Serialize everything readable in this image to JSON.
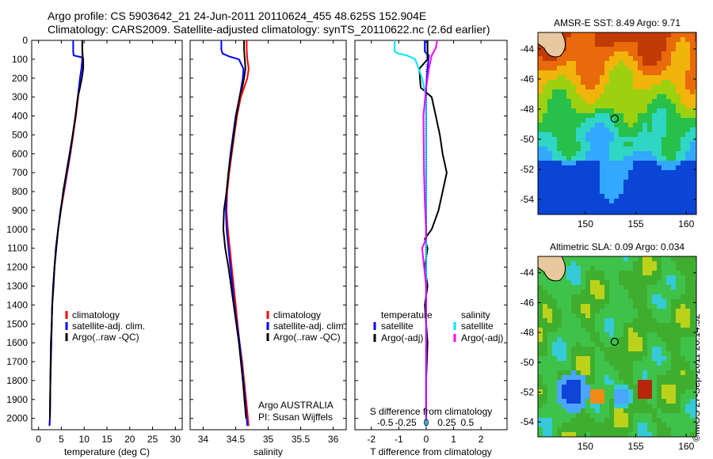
{
  "figure": {
    "title_line1": "Argo profile: CS 5903642_21 24-Jun-2011 20110624_455 48.625S 152.904E",
    "title_line2": "Climatology: CARS2009. Satellite-adjusted climatology: synTS_20110622.nc (2.6d earlier)",
    "credit": "©IMOS 27-Sep-2011 20:14:52",
    "colors": {
      "climatology": "#ff0000",
      "satellite": "#0000ff",
      "argo": "#000000",
      "sal_satellite": "#00e5ff",
      "sal_argo": "#ff00ff"
    }
  },
  "chart_data": [
    {
      "id": "temperature",
      "type": "line",
      "xlabel": "temperature (deg C)",
      "xlim": [
        -1.5,
        31.5
      ],
      "xticks": [
        0,
        5,
        10,
        15,
        20,
        25,
        30
      ],
      "ylim": [
        2060,
        0
      ],
      "yticks": [
        0,
        100,
        200,
        300,
        400,
        500,
        600,
        700,
        800,
        900,
        1000,
        1100,
        1200,
        1300,
        1400,
        1500,
        1600,
        1700,
        1800,
        1900,
        2000
      ],
      "legend": [
        "climatology",
        "satellite-adj. clim.",
        "Argo(..raw -QC)"
      ],
      "series": [
        {
          "name": "climatology",
          "color": "#ff0000",
          "x": [
            9.6,
            9.6,
            9.6,
            9.4,
            9.1,
            8.7,
            8.2,
            7.6,
            7.0,
            6.3,
            5.6,
            4.9,
            4.3,
            3.8,
            3.5,
            3.2,
            3.0,
            2.9,
            2.8,
            2.6,
            2.5,
            2.4
          ],
          "y": [
            0,
            50,
            100,
            150,
            200,
            300,
            400,
            500,
            600,
            700,
            800,
            900,
            1000,
            1100,
            1200,
            1300,
            1400,
            1500,
            1600,
            1800,
            2000,
            2040
          ]
        },
        {
          "name": "satellite-adj. clim.",
          "color": "#0000ff",
          "x": [
            7.6,
            7.6,
            7.7,
            9.5,
            9.6,
            9.4,
            9.1,
            8.6,
            8.1,
            7.5,
            6.9,
            6.2,
            5.5,
            4.8,
            4.3,
            3.8,
            3.5,
            3.2,
            3.0,
            2.9,
            2.8,
            2.6,
            2.5,
            2.4
          ],
          "y": [
            0,
            60,
            80,
            90,
            100,
            150,
            200,
            300,
            400,
            500,
            600,
            700,
            800,
            900,
            1000,
            1100,
            1200,
            1300,
            1400,
            1500,
            1600,
            1800,
            2000,
            2040
          ]
        },
        {
          "name": "Argo(..raw -QC)",
          "color": "#000000",
          "x": [
            9.6,
            9.6,
            9.7,
            9.8,
            9.8,
            9.5,
            9.1,
            8.6,
            8.1,
            7.5,
            6.8,
            6.1,
            5.4,
            4.9,
            4.3,
            3.9,
            3.5,
            3.3,
            3.0,
            2.9,
            2.7,
            2.6,
            2.5
          ],
          "y": [
            0,
            50,
            90,
            100,
            150,
            200,
            250,
            300,
            400,
            500,
            600,
            700,
            800,
            900,
            1000,
            1100,
            1200,
            1300,
            1400,
            1500,
            1600,
            1800,
            2000
          ]
        }
      ]
    },
    {
      "id": "salinity",
      "type": "line",
      "xlabel": "salinity",
      "xlim": [
        33.8,
        36.2
      ],
      "xticks": [
        34,
        34.5,
        35,
        35.5,
        36
      ],
      "ylim": [
        2060,
        0
      ],
      "legend": [
        "climatology",
        "satellite-adj. clim.",
        "Argo(..raw -QC)"
      ],
      "annotation": [
        "Argo AUSTRALIA",
        "PI: Susan Wijffels"
      ],
      "series": [
        {
          "name": "climatology",
          "color": "#ff0000",
          "x": [
            34.67,
            34.67,
            34.68,
            34.7,
            34.68,
            34.63,
            34.58,
            34.52,
            34.48,
            34.44,
            34.4,
            34.37,
            34.36,
            34.38,
            34.41,
            34.44,
            34.47,
            34.5,
            34.53,
            34.56,
            34.6,
            34.66,
            34.7
          ],
          "y": [
            0,
            50,
            100,
            150,
            200,
            250,
            300,
            400,
            500,
            600,
            700,
            800,
            900,
            1000,
            1100,
            1200,
            1300,
            1400,
            1500,
            1600,
            1700,
            1900,
            2040
          ]
        },
        {
          "name": "satellite-adj. clim.",
          "color": "#0000ff",
          "x": [
            34.28,
            34.28,
            34.3,
            34.4,
            34.55,
            34.62,
            34.61,
            34.56,
            34.5,
            34.46,
            34.42,
            34.39,
            34.36,
            34.35,
            34.36,
            34.39,
            34.42,
            34.45,
            34.48,
            34.52,
            34.56,
            34.62,
            34.68
          ],
          "y": [
            0,
            50,
            70,
            85,
            100,
            150,
            200,
            300,
            400,
            500,
            600,
            700,
            800,
            900,
            1000,
            1100,
            1200,
            1300,
            1400,
            1500,
            1600,
            1800,
            2040
          ]
        },
        {
          "name": "Argo(..raw -QC)",
          "color": "#000000",
          "x": [
            34.63,
            34.63,
            34.64,
            34.65,
            34.63,
            34.6,
            34.56,
            34.51,
            34.47,
            34.43,
            34.39,
            34.36,
            34.32,
            34.31,
            34.34,
            34.39,
            34.43,
            34.47,
            34.51,
            34.55,
            34.61,
            34.66
          ],
          "y": [
            0,
            50,
            100,
            150,
            200,
            250,
            300,
            400,
            500,
            600,
            700,
            800,
            900,
            1000,
            1100,
            1200,
            1300,
            1400,
            1500,
            1600,
            1800,
            2000
          ]
        }
      ]
    },
    {
      "id": "difference",
      "type": "line",
      "xlabel": "T difference from climatology",
      "xlim": [
        -2.6,
        2.95
      ],
      "xticks": [
        -2,
        -1,
        0,
        1,
        2
      ],
      "top_label": "S difference from climatology",
      "top_ticks": [
        "-0.5",
        "-0.25",
        "0",
        "0.25",
        "0.5"
      ],
      "top_ticks_at": [
        -1.5,
        -0.75,
        0,
        0.75,
        1.5
      ],
      "ylim": [
        2060,
        0
      ],
      "legend_headers": [
        "temperature",
        "salinity"
      ],
      "legend": [
        "satellite",
        "Argo(-adj)",
        "satellite",
        "Argo(-adj)"
      ],
      "series": [
        {
          "name": "temperature satellite",
          "color": "#0000ff",
          "x": [
            -0.05,
            -0.05,
            0.1,
            0.05,
            0.0,
            0.0,
            0.0,
            0.0,
            0.0,
            0.0,
            0.0,
            0.0,
            0.0
          ],
          "y": [
            0,
            60,
            80,
            150,
            250,
            400,
            600,
            800,
            1000,
            1200,
            1500,
            1800,
            2040
          ]
        },
        {
          "name": "temperature Argo(-adj)",
          "color": "#000000",
          "x": [
            0.05,
            0.05,
            0.05,
            -0.25,
            -0.2,
            0.2,
            0.35,
            0.5,
            0.6,
            0.75,
            0.6,
            0.45,
            0.2,
            -0.05,
            0.05,
            -0.05,
            0.05,
            -0.05,
            0.05,
            0.0,
            0.0
          ],
          "y": [
            0,
            60,
            100,
            150,
            250,
            300,
            400,
            500,
            600,
            700,
            800,
            900,
            1000,
            1050,
            1100,
            1200,
            1300,
            1400,
            1600,
            1800,
            2000
          ]
        },
        {
          "name": "salinity satellite",
          "color": "#00e5ff",
          "x": [
            -1.15,
            -1.15,
            -1.0,
            -0.7,
            -0.4,
            -0.15,
            0.0,
            0.0,
            0.0,
            0.0,
            0.0,
            0.0,
            0.0
          ],
          "y": [
            0,
            60,
            70,
            80,
            100,
            200,
            300,
            500,
            700,
            1000,
            1300,
            1700,
            2040
          ]
        },
        {
          "name": "salinity Argo(-adj)",
          "color": "#ff00ff",
          "x": [
            0.4,
            0.35,
            0.2,
            0.1,
            0.0,
            -0.1,
            -0.08,
            -0.05,
            0.0,
            0.0,
            -0.15,
            0.0,
            0.0,
            0.0
          ],
          "y": [
            0,
            40,
            80,
            150,
            250,
            400,
            700,
            850,
            1000,
            1050,
            1100,
            1300,
            1700,
            2000
          ]
        }
      ]
    },
    {
      "id": "sst_map",
      "type": "heatmap",
      "title": "AMSR-E SST: 8.49  Argo: 9.71",
      "xticks": [
        150,
        155,
        160
      ],
      "yticks": [
        -44,
        -46,
        -48,
        -50,
        -52,
        -54
      ],
      "xlim": [
        145.3,
        161
      ],
      "ylim": [
        -55,
        -42.9
      ],
      "marker": {
        "lon": 152.904,
        "lat": -48.625
      }
    },
    {
      "id": "sla_map",
      "type": "heatmap",
      "title": "Altimetric SLA: 0.09  Argo: 0.034",
      "xticks": [
        150,
        155,
        160
      ],
      "yticks": [
        -44,
        -46,
        -48,
        -50,
        -52,
        -54
      ],
      "xlim": [
        145.3,
        161
      ],
      "ylim": [
        -55,
        -42.9
      ],
      "marker": {
        "lon": 152.904,
        "lat": -48.625
      }
    }
  ]
}
